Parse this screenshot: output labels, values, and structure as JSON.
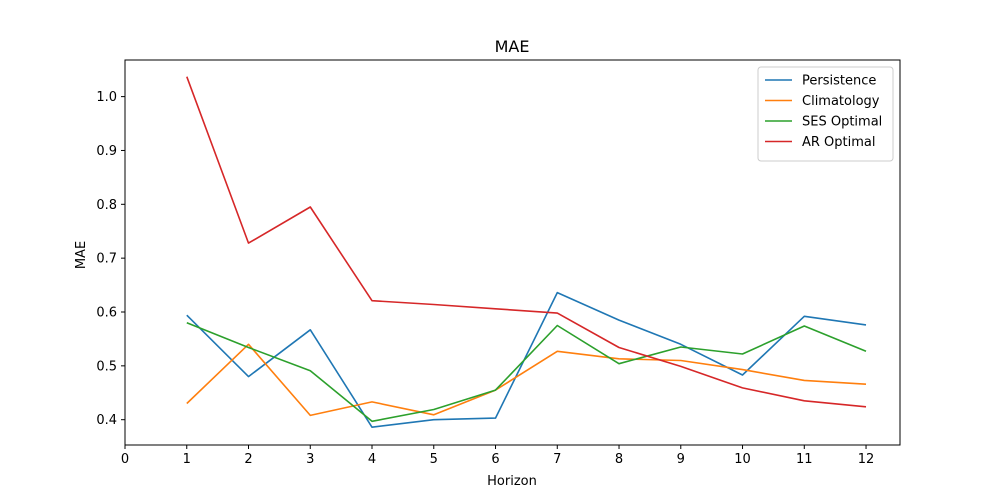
{
  "chart_data": {
    "type": "line",
    "title": "MAE",
    "xlabel": "Horizon",
    "ylabel": "MAE",
    "xlim": [
      0,
      12.55
    ],
    "ylim": [
      0.353,
      1.068
    ],
    "xticks": [
      0,
      1,
      2,
      3,
      4,
      5,
      6,
      7,
      8,
      9,
      10,
      11,
      12
    ],
    "yticks": [
      0.4,
      0.5,
      0.6,
      0.7,
      0.8,
      0.9,
      1.0
    ],
    "ytick_labels": [
      "0.4",
      "0.5",
      "0.6",
      "0.7",
      "0.8",
      "0.9",
      "1.0"
    ],
    "grid": false,
    "legend_position": "top-right",
    "x": [
      1,
      2,
      3,
      4,
      5,
      6,
      7,
      8,
      9,
      10,
      11,
      12
    ],
    "series": [
      {
        "name": "Persistence",
        "color": "#1f77b4",
        "values": [
          0.594,
          0.48,
          0.567,
          0.386,
          0.4,
          0.403,
          0.636,
          0.585,
          0.54,
          0.483,
          0.592,
          0.576
        ]
      },
      {
        "name": "Climatology",
        "color": "#ff7f0e",
        "values": [
          0.43,
          0.54,
          0.408,
          0.433,
          0.409,
          0.455,
          0.527,
          0.513,
          0.51,
          0.493,
          0.473,
          0.466
        ]
      },
      {
        "name": "SES Optimal",
        "color": "#2ca02c",
        "values": [
          0.58,
          0.534,
          0.491,
          0.397,
          0.419,
          0.455,
          0.575,
          0.504,
          0.535,
          0.522,
          0.574,
          0.527
        ]
      },
      {
        "name": "AR Optimal",
        "color": "#d62728",
        "values": [
          1.037,
          0.728,
          0.795,
          0.621,
          0.614,
          0.606,
          0.598,
          0.534,
          0.499,
          0.459,
          0.435,
          0.424
        ]
      }
    ]
  }
}
